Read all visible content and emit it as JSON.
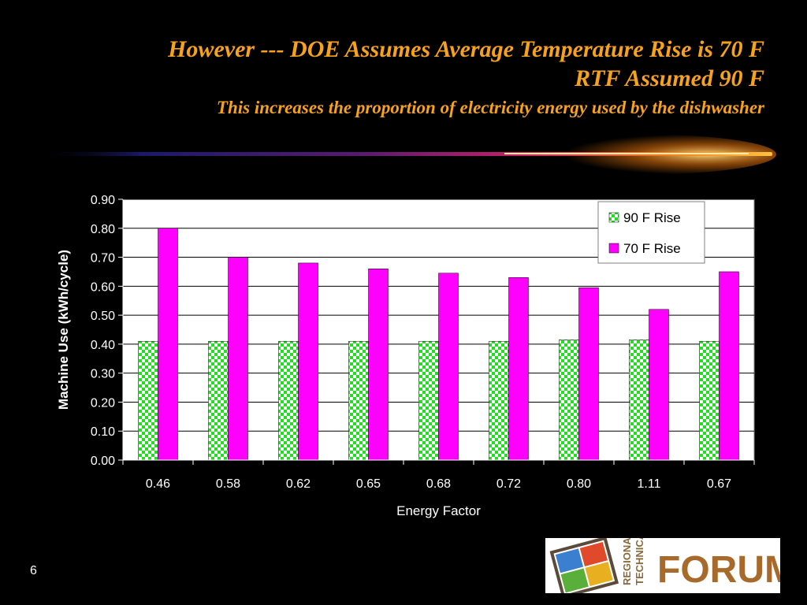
{
  "slide": {
    "title_line1": "However --- DOE  Assumes Average Temperature Rise  is 70 F",
    "title_line2": "RTF Assumed 90 F",
    "subtitle": "This increases the proportion of  electricity energy used by the dishwasher",
    "page_number": "6",
    "title_color": "#F7A21B"
  },
  "logo": {
    "text_main": "FORUM",
    "text_side1": "REGIONAL",
    "text_side2": "TECHNICAL"
  },
  "chart_data": {
    "type": "bar",
    "title": "",
    "xlabel": "Energy Factor",
    "ylabel": "Machine Use (kWh/cycle)",
    "ylim": [
      0,
      0.9
    ],
    "yticks": [
      "0.00",
      "0.10",
      "0.20",
      "0.30",
      "0.40",
      "0.50",
      "0.60",
      "0.70",
      "0.80",
      "0.90"
    ],
    "categories": [
      "0.46",
      "0.58",
      "0.62",
      "0.65",
      "0.68",
      "0.72",
      "0.80",
      "1.11",
      "0.67"
    ],
    "series": [
      {
        "name": "90 F Rise",
        "color": "#22DD22",
        "pattern": "checkered",
        "values": [
          0.41,
          0.41,
          0.41,
          0.41,
          0.41,
          0.41,
          0.415,
          0.415,
          0.41
        ]
      },
      {
        "name": "70 F Rise",
        "color": "#FF00FF",
        "pattern": "solid",
        "values": [
          0.8,
          0.7,
          0.68,
          0.66,
          0.645,
          0.63,
          0.595,
          0.52,
          0.65
        ]
      }
    ],
    "legend_position": "top-right",
    "grid": true
  }
}
